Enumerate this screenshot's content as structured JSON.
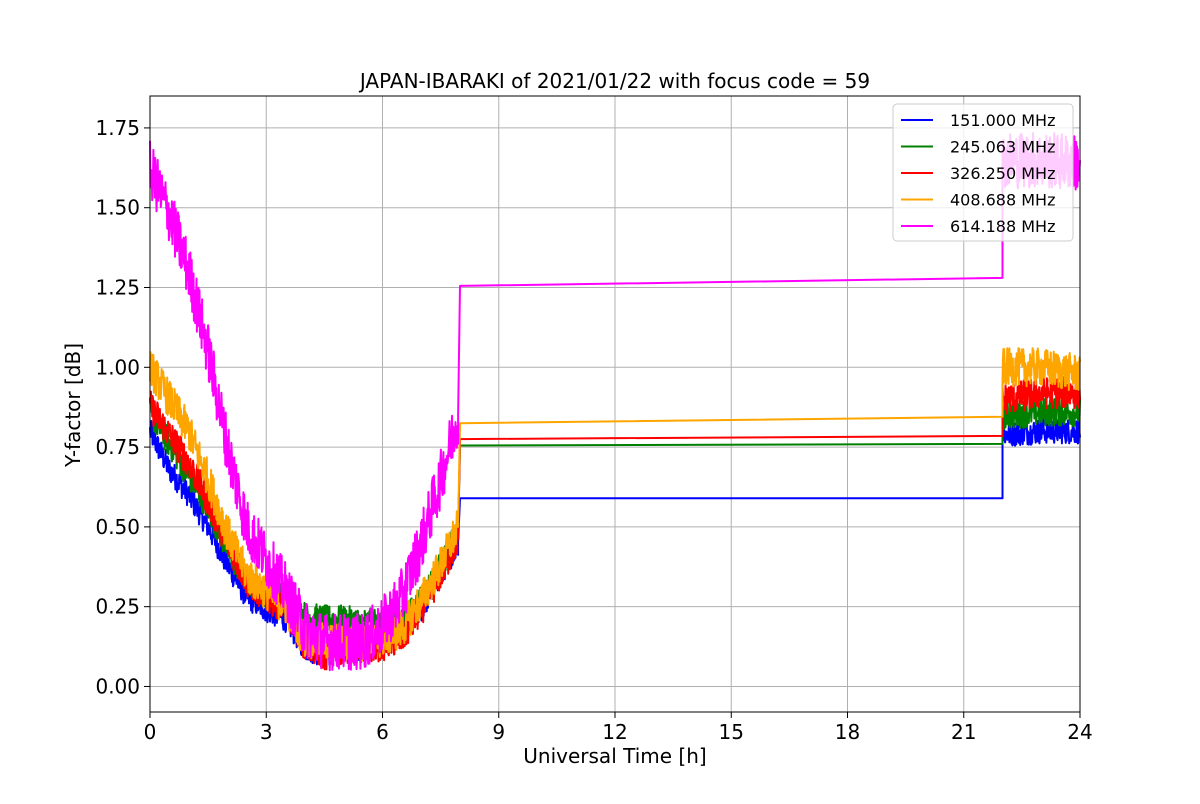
{
  "chart_data": {
    "type": "line",
    "title": "JAPAN-IBARAKI of 2021/01/22 with focus code = 59",
    "xlabel": "Universal Time [h]",
    "ylabel": "Y-factor [dB]",
    "xlim": [
      0,
      24
    ],
    "ylim": [
      -0.08,
      1.85
    ],
    "xticks": [
      0,
      3,
      6,
      9,
      12,
      15,
      18,
      21,
      24
    ],
    "yticks": [
      0.0,
      0.25,
      0.5,
      0.75,
      1.0,
      1.25,
      1.5,
      1.75
    ],
    "xtick_labels": [
      "0",
      "3",
      "6",
      "9",
      "12",
      "15",
      "18",
      "21",
      "24"
    ],
    "ytick_labels": [
      "0.00",
      "0.25",
      "0.50",
      "0.75",
      "1.00",
      "1.25",
      "1.50",
      "1.75"
    ],
    "grid": true,
    "legend_position": "top-right",
    "series": [
      {
        "name": "151.000 MHz",
        "color": "#0000ff",
        "noise": 0.04,
        "segments": [
          {
            "x": [
              0,
              0.5,
              1,
              1.5,
              2,
              2.5,
              3,
              3.5,
              4,
              4.5,
              5,
              5.5,
              6,
              6.5,
              7,
              7.5,
              7.95
            ],
            "y": [
              0.8,
              0.68,
              0.6,
              0.5,
              0.38,
              0.28,
              0.24,
              0.21,
              0.12,
              0.1,
              0.12,
              0.12,
              0.14,
              0.17,
              0.24,
              0.35,
              0.45
            ]
          },
          {
            "x": [
              7.95,
              8.0,
              22.0,
              22.0
            ],
            "y": [
              0.45,
              0.59,
              0.59,
              0.75
            ]
          },
          {
            "x": [
              22.0,
              23.0,
              24.0
            ],
            "y": [
              0.79,
              0.8,
              0.8
            ]
          }
        ]
      },
      {
        "name": "245.063 MHz",
        "color": "#008000",
        "noise": 0.045,
        "segments": [
          {
            "x": [
              0,
              0.5,
              1,
              1.5,
              2,
              2.5,
              3,
              3.5,
              4,
              4.5,
              5,
              5.5,
              6,
              6.5,
              7,
              7.5,
              7.95
            ],
            "y": [
              0.86,
              0.76,
              0.66,
              0.56,
              0.43,
              0.33,
              0.29,
              0.28,
              0.22,
              0.21,
              0.21,
              0.2,
              0.2,
              0.2,
              0.27,
              0.38,
              0.48
            ]
          },
          {
            "x": [
              7.95,
              8.0,
              22.0,
              22.0
            ],
            "y": [
              0.48,
              0.755,
              0.76,
              0.8
            ]
          },
          {
            "x": [
              22.0,
              23.0,
              24.0
            ],
            "y": [
              0.85,
              0.86,
              0.86
            ]
          }
        ]
      },
      {
        "name": "326.250 MHz",
        "color": "#ff0000",
        "noise": 0.05,
        "segments": [
          {
            "x": [
              0,
              0.5,
              1,
              1.5,
              2,
              2.5,
              3,
              3.5,
              4,
              4.5,
              5,
              5.5,
              6,
              6.5,
              7,
              7.5,
              7.95
            ],
            "y": [
              0.88,
              0.79,
              0.7,
              0.58,
              0.45,
              0.33,
              0.28,
              0.25,
              0.13,
              0.1,
              0.12,
              0.12,
              0.13,
              0.15,
              0.24,
              0.35,
              0.46
            ]
          },
          {
            "x": [
              7.95,
              8.0,
              22.0,
              22.0
            ],
            "y": [
              0.46,
              0.775,
              0.785,
              0.85
            ]
          },
          {
            "x": [
              22.0,
              23.0,
              24.0
            ],
            "y": [
              0.9,
              0.92,
              0.92
            ]
          }
        ]
      },
      {
        "name": "408.688 MHz",
        "color": "#ffa500",
        "noise": 0.06,
        "segments": [
          {
            "x": [
              0,
              0.5,
              1,
              1.5,
              2,
              2.5,
              3,
              3.5,
              4,
              4.5,
              5,
              5.5,
              6,
              6.5,
              7,
              7.5,
              7.95
            ],
            "y": [
              1.0,
              0.9,
              0.8,
              0.65,
              0.48,
              0.35,
              0.3,
              0.25,
              0.15,
              0.14,
              0.14,
              0.14,
              0.15,
              0.18,
              0.27,
              0.38,
              0.5
            ]
          },
          {
            "x": [
              7.95,
              8.0,
              22.0,
              22.0
            ],
            "y": [
              0.5,
              0.825,
              0.845,
              0.9
            ]
          },
          {
            "x": [
              22.0,
              23.0,
              24.0
            ],
            "y": [
              1.0,
              1.0,
              0.98
            ]
          }
        ]
      },
      {
        "name": "614.188 MHz",
        "color": "#ff00ff",
        "noise": 0.09,
        "segments": [
          {
            "x": [
              0,
              0.5,
              1,
              1.5,
              2,
              2.5,
              3,
              3.5,
              4,
              4.5,
              5,
              5.5,
              6,
              6.5,
              7,
              7.5,
              7.95
            ],
            "y": [
              1.62,
              1.48,
              1.3,
              1.05,
              0.75,
              0.5,
              0.4,
              0.3,
              0.18,
              0.14,
              0.14,
              0.14,
              0.19,
              0.28,
              0.45,
              0.65,
              0.85
            ]
          },
          {
            "x": [
              7.95,
              8.0,
              22.0,
              22.0
            ],
            "y": [
              0.85,
              1.255,
              1.28,
              1.55
            ]
          },
          {
            "x": [
              22.0,
              23.0,
              24.0
            ],
            "y": [
              1.65,
              1.65,
              1.64
            ]
          }
        ]
      }
    ]
  }
}
